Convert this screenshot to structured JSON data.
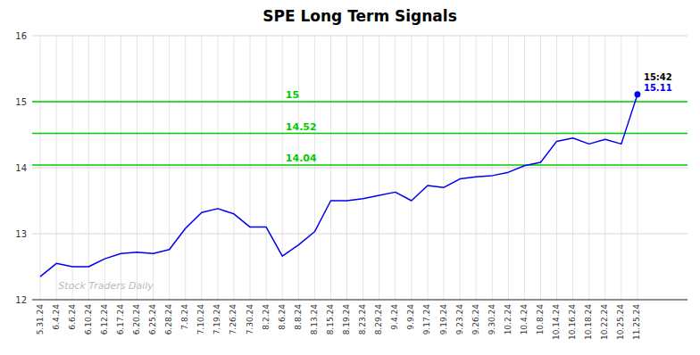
{
  "chart_data": {
    "type": "line",
    "title": "SPE Long Term Signals",
    "watermark": "Stock Traders Daily",
    "categories": [
      "5.31.24",
      "6.4.24",
      "6.6.24",
      "6.10.24",
      "6.12.24",
      "6.17.24",
      "6.20.24",
      "6.25.24",
      "6.28.24",
      "7.8.24",
      "7.10.24",
      "7.19.24",
      "7.26.24",
      "7.30.24",
      "8.2.24",
      "8.6.24",
      "8.8.24",
      "8.13.24",
      "8.15.24",
      "8.19.24",
      "8.23.24",
      "8.29.24",
      "9.4.24",
      "9.9.24",
      "9.17.24",
      "9.19.24",
      "9.23.24",
      "9.26.24",
      "9.30.24",
      "10.2.24",
      "10.4.24",
      "10.8.24",
      "10.14.24",
      "10.16.24",
      "10.18.24",
      "10.22.24",
      "10.25.24",
      "11.25.24"
    ],
    "values": [
      12.35,
      12.55,
      12.5,
      12.5,
      12.62,
      12.7,
      12.72,
      12.7,
      12.76,
      13.08,
      13.32,
      13.38,
      13.3,
      13.1,
      13.1,
      12.66,
      12.83,
      13.03,
      13.5,
      13.5,
      13.53,
      13.58,
      13.63,
      13.5,
      13.73,
      13.7,
      13.83,
      13.86,
      13.88,
      13.93,
      14.03,
      14.08,
      14.4,
      14.45,
      14.36,
      14.43,
      14.36,
      15.11
    ],
    "color": "#0000ee",
    "hlines": [
      {
        "value": 15.0,
        "label": "15",
        "color": "#00cc00"
      },
      {
        "value": 14.52,
        "label": "14.52",
        "color": "#00cc00"
      },
      {
        "value": 14.04,
        "label": "14.04",
        "color": "#00cc00"
      }
    ],
    "annotations": [
      {
        "text": "15:42"
      },
      {
        "text": "15.11",
        "color": "#0000ee"
      }
    ],
    "ylim": [
      12,
      16
    ],
    "yticks": [
      12,
      13,
      14,
      15,
      16
    ],
    "grid": true
  }
}
